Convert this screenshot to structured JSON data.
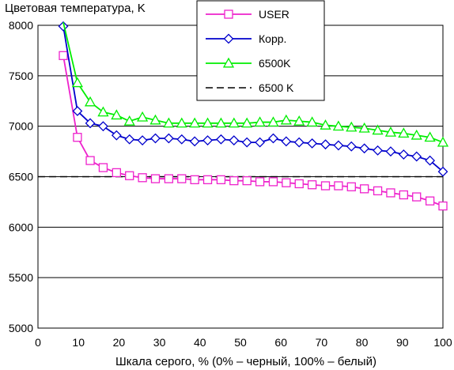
{
  "chart_data": {
    "type": "line",
    "title": "",
    "ylabel": "Цветовая температура, K",
    "xlabel": "Шкала серого, % (0% – черный, 100% – белый)",
    "xlim": [
      0,
      100
    ],
    "ylim": [
      5000,
      8000
    ],
    "xticks": [
      0,
      10,
      20,
      30,
      40,
      50,
      60,
      70,
      80,
      90,
      100
    ],
    "yticks": [
      5000,
      5500,
      6000,
      6500,
      7000,
      7500,
      8000
    ],
    "grid": "horizontal",
    "legend_position": "top-center",
    "x": [
      6.25,
      9.75,
      12.9,
      16.1,
      19.4,
      22.6,
      25.8,
      29.0,
      32.3,
      35.5,
      38.7,
      41.9,
      45.2,
      48.4,
      51.6,
      54.8,
      58.1,
      61.3,
      64.5,
      67.7,
      71.0,
      74.2,
      77.4,
      80.6,
      83.9,
      87.1,
      90.3,
      93.5,
      96.8,
      100.0
    ],
    "series": [
      {
        "name": "USER",
        "color": "#ee22cc",
        "marker": "square",
        "dash": "solid",
        "values": [
          7700,
          6890,
          6660,
          6590,
          6540,
          6510,
          6490,
          6480,
          6480,
          6480,
          6470,
          6470,
          6470,
          6460,
          6460,
          6450,
          6450,
          6440,
          6430,
          6420,
          6410,
          6410,
          6400,
          6380,
          6360,
          6340,
          6320,
          6300,
          6260,
          6210
        ]
      },
      {
        "name": "Корр.",
        "color": "#0000cc",
        "marker": "diamond",
        "dash": "solid",
        "values": [
          7990,
          7150,
          7030,
          7000,
          6910,
          6870,
          6860,
          6880,
          6880,
          6870,
          6850,
          6860,
          6870,
          6860,
          6840,
          6840,
          6880,
          6850,
          6840,
          6830,
          6820,
          6810,
          6800,
          6780,
          6760,
          6750,
          6720,
          6700,
          6660,
          6550
        ]
      },
      {
        "name": "6500K",
        "color": "#00ee00",
        "marker": "triangle",
        "dash": "solid",
        "values": [
          8030,
          7430,
          7240,
          7140,
          7110,
          7050,
          7090,
          7060,
          7030,
          7030,
          7030,
          7030,
          7030,
          7030,
          7030,
          7040,
          7040,
          7060,
          7050,
          7040,
          7010,
          7000,
          6990,
          6980,
          6960,
          6940,
          6930,
          6910,
          6890,
          6840
        ]
      }
    ],
    "reference_line": {
      "name": "6500 K",
      "color": "#000000",
      "dash": "dashed",
      "y": 6500
    }
  }
}
